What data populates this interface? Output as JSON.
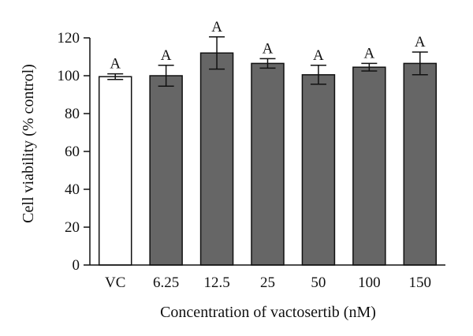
{
  "chart_data": {
    "type": "bar",
    "title": "",
    "xlabel": "Concentration of vactosertib (nM)",
    "ylabel": "Cell viability (% control)",
    "ylim": [
      0,
      120
    ],
    "yticks": [
      0,
      20,
      40,
      60,
      80,
      100,
      120
    ],
    "categories": [
      "VC",
      "6.25",
      "12.5",
      "25",
      "50",
      "100",
      "150"
    ],
    "values": [
      99.5,
      100,
      112,
      106.5,
      100.5,
      104.5,
      106.5
    ],
    "errors": [
      1.5,
      5.5,
      8.5,
      2.5,
      5,
      2,
      6
    ],
    "significance_labels": [
      "A",
      "A",
      "A",
      "A",
      "A",
      "A",
      "A"
    ],
    "bar_colors": [
      "#ffffff",
      "#666666",
      "#666666",
      "#666666",
      "#666666",
      "#666666",
      "#666666"
    ],
    "grid": false,
    "legend": "none"
  }
}
